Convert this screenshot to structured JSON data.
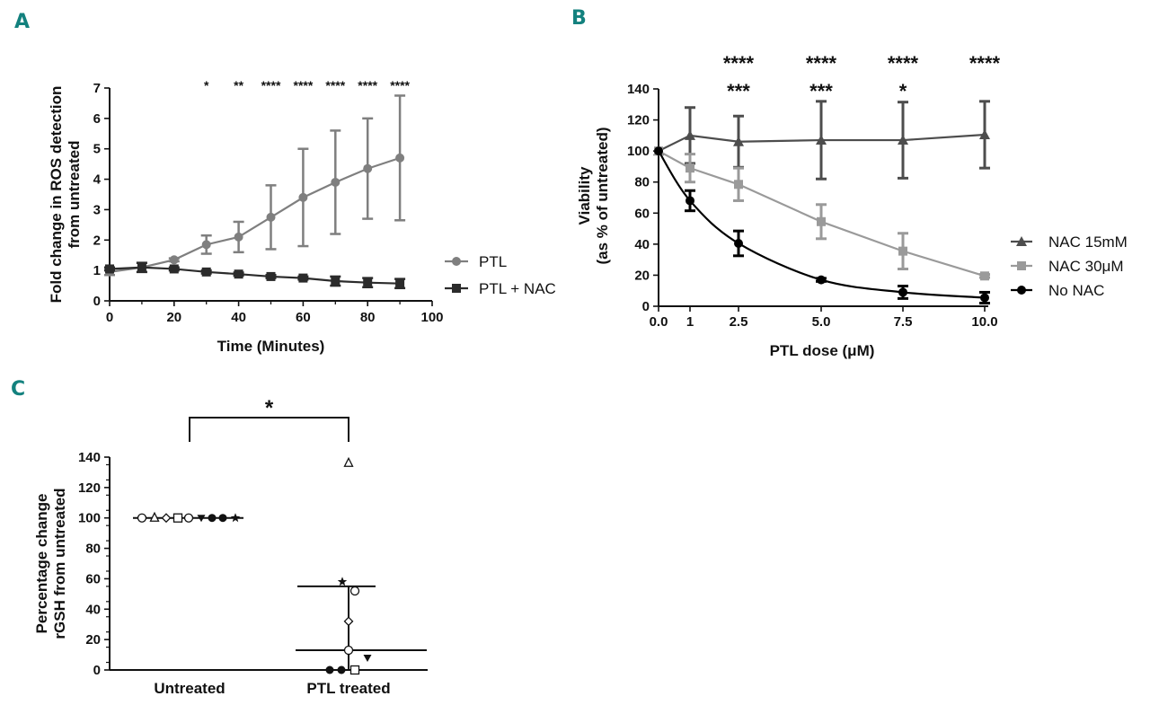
{
  "panel_labels": {
    "a": "A",
    "b": "B",
    "c": "C"
  },
  "colors": {
    "ptl": "#7f7f7f",
    "ptl_nac": "#2b2b2b",
    "nac15": "#4d4d4d",
    "nac30": "#9a9a9a",
    "nonac": "#000000",
    "letter": "#13817e"
  },
  "chart_data": [
    {
      "id": "A",
      "type": "line",
      "xlabel": "Time (Minutes)",
      "ylabel_lines": [
        "Fold change in ROS detection",
        "from untreated"
      ],
      "xlim": [
        0,
        100
      ],
      "ylim": [
        0,
        7
      ],
      "xticks": [
        0,
        20,
        40,
        60,
        80,
        100
      ],
      "yticks": [
        0,
        1,
        2,
        3,
        4,
        5,
        6,
        7
      ],
      "series": [
        {
          "name": "PTL",
          "marker": "circle",
          "color": "#7f7f7f",
          "x": [
            0,
            10,
            20,
            30,
            40,
            50,
            60,
            70,
            80,
            90
          ],
          "y": [
            0.95,
            1.1,
            1.35,
            1.85,
            2.1,
            2.75,
            3.4,
            3.9,
            4.35,
            4.7
          ],
          "err": [
            0.1,
            0.15,
            0.05,
            0.3,
            0.5,
            1.05,
            1.6,
            1.7,
            1.65,
            2.05
          ]
        },
        {
          "name": "PTL + NAC",
          "marker": "square",
          "color": "#2b2b2b",
          "x": [
            0,
            10,
            20,
            30,
            40,
            50,
            60,
            70,
            80,
            90
          ],
          "y": [
            1.05,
            1.1,
            1.05,
            0.95,
            0.88,
            0.8,
            0.75,
            0.65,
            0.6,
            0.57
          ],
          "err": [
            0.05,
            0.15,
            0.05,
            0.05,
            0.05,
            0.05,
            0.05,
            0.15,
            0.15,
            0.15
          ]
        }
      ],
      "annotations": [
        {
          "x": 30,
          "text": "*"
        },
        {
          "x": 40,
          "text": "**"
        },
        {
          "x": 50,
          "text": "****"
        },
        {
          "x": 60,
          "text": "****"
        },
        {
          "x": 70,
          "text": "****"
        },
        {
          "x": 80,
          "text": "****"
        },
        {
          "x": 90,
          "text": "****"
        }
      ],
      "legend": {
        "position": "right"
      }
    },
    {
      "id": "B",
      "type": "line",
      "xlabel": "PTL dose (μM)",
      "ylabel_lines": [
        "Viability",
        "(as % of untreated)"
      ],
      "xticks": [
        "0.0",
        "1",
        "2.5",
        "5.0",
        "7.5",
        "10.0"
      ],
      "ylim": [
        0,
        140
      ],
      "yticks": [
        0,
        20,
        40,
        60,
        80,
        100,
        120,
        140
      ],
      "series": [
        {
          "name": "NAC 15mM",
          "marker": "triangle",
          "color": "#4d4d4d",
          "x": [
            0,
            1,
            2.5,
            5,
            7.5,
            10
          ],
          "y": [
            100,
            110,
            106,
            107,
            107,
            110.5
          ],
          "err": [
            0,
            18,
            16.5,
            25,
            24.5,
            21.5
          ]
        },
        {
          "name": "NAC 30μM",
          "marker": "square",
          "color": "#9a9a9a",
          "x": [
            0,
            1,
            2.5,
            5,
            7.5,
            10
          ],
          "y": [
            100,
            89,
            78.5,
            54.5,
            35.5,
            19.5
          ],
          "err": [
            0,
            9,
            10.5,
            11,
            11.5,
            1
          ]
        },
        {
          "name": "No NAC",
          "marker": "circle",
          "color": "#000000",
          "x": [
            0,
            1,
            2.5,
            5,
            7.5,
            10
          ],
          "y": [
            100,
            68,
            40.5,
            17,
            9,
            5.5
          ],
          "err": [
            0,
            6.5,
            8,
            1,
            4,
            3.5
          ]
        }
      ],
      "annotations_top": [
        {
          "x": 2.5,
          "text": "****"
        },
        {
          "x": 5,
          "text": "****"
        },
        {
          "x": 7.5,
          "text": "****"
        },
        {
          "x": 10,
          "text": "****"
        }
      ],
      "annotations_second": [
        {
          "x": 2.5,
          "text": "***"
        },
        {
          "x": 5,
          "text": "***"
        },
        {
          "x": 7.5,
          "text": "*"
        }
      ],
      "legend": {
        "position": "right"
      }
    },
    {
      "id": "C",
      "type": "scatter",
      "ylabel_lines": [
        "Percentage change",
        "rGSH from untreated"
      ],
      "categories": [
        "Untreated",
        "PTL treated"
      ],
      "ylim": [
        0,
        140
      ],
      "yticks": [
        0,
        20,
        40,
        60,
        80,
        100,
        120,
        140
      ],
      "significance": "*",
      "groups": [
        {
          "name": "Untreated",
          "median": 100,
          "iqr": [
            100,
            100
          ],
          "points": [
            {
              "y": 100,
              "marker": "circle-open"
            },
            {
              "y": 100,
              "marker": "triangle-open"
            },
            {
              "y": 100,
              "marker": "diamond-open"
            },
            {
              "y": 100,
              "marker": "square-open"
            },
            {
              "y": 100,
              "marker": "circle-open"
            },
            {
              "y": 100,
              "marker": "triangle-down-filled"
            },
            {
              "y": 100,
              "marker": "circle-filled"
            },
            {
              "y": 100,
              "marker": "circle-filled"
            },
            {
              "y": 100,
              "marker": "star-filled"
            }
          ]
        },
        {
          "name": "PTL treated",
          "median": 13,
          "iqr": [
            0,
            55
          ],
          "points": [
            {
              "y": 136,
              "marker": "triangle-open"
            },
            {
              "y": 58,
              "marker": "star-filled"
            },
            {
              "y": 52,
              "marker": "circle-open"
            },
            {
              "y": 32,
              "marker": "diamond-open"
            },
            {
              "y": 13,
              "marker": "circle-open"
            },
            {
              "y": 8,
              "marker": "triangle-down-filled"
            },
            {
              "y": 0,
              "marker": "circle-filled"
            },
            {
              "y": 0,
              "marker": "circle-filled"
            },
            {
              "y": 0,
              "marker": "square-open"
            }
          ]
        }
      ]
    }
  ]
}
